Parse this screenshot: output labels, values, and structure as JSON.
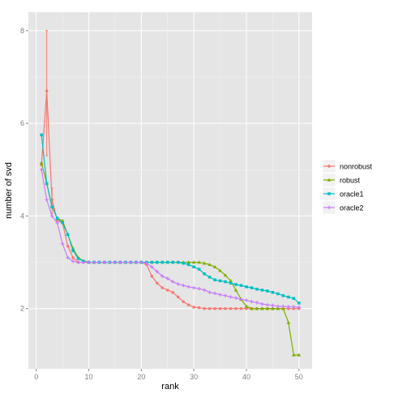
{
  "chart_data": {
    "type": "line",
    "title": "",
    "xlabel": "rank",
    "ylabel": "number of svd",
    "xlim": [
      -1.5,
      52.5
    ],
    "ylim": [
      0.7,
      8.4
    ],
    "xticks": [
      0,
      10,
      20,
      30,
      40,
      50
    ],
    "yticks": [
      2,
      4,
      6,
      8
    ],
    "grid": true,
    "legend_position": "right",
    "series": [
      {
        "name": "nonrobust",
        "color": "#F8766D",
        "marker": "circle",
        "x": [
          1,
          2,
          3,
          4,
          5,
          6,
          7,
          8,
          9,
          10,
          11,
          12,
          13,
          14,
          15,
          16,
          17,
          18,
          19,
          20,
          21,
          22,
          23,
          24,
          25,
          26,
          27,
          28,
          29,
          30,
          31,
          32,
          33,
          34,
          35,
          36,
          37,
          38,
          39,
          40,
          41,
          42,
          43,
          44,
          45,
          46,
          47,
          48,
          49,
          50
        ],
        "values": [
          5.1,
          6.7,
          4.35,
          3.9,
          3.85,
          3.35,
          3.1,
          3.0,
          3.0,
          3.0,
          3.0,
          3.0,
          3.0,
          3.0,
          3.0,
          3.0,
          3.0,
          3.0,
          3.0,
          3.0,
          2.95,
          2.7,
          2.55,
          2.45,
          2.4,
          2.35,
          2.25,
          2.15,
          2.08,
          2.03,
          2.02,
          2.0,
          2.0,
          2.0,
          2.0,
          2.0,
          2.0,
          2.0,
          2.0,
          2.0,
          2.0,
          2.0,
          2.0,
          2.0,
          2.0,
          2.0,
          2.0,
          2.0,
          2.0,
          2.0
        ],
        "error_bars": [
          {
            "x": 2,
            "low": 5.3,
            "high": 8.0
          },
          {
            "x": 3,
            "low": 4.05,
            "high": 4.6
          }
        ]
      },
      {
        "name": "robust",
        "color": "#7CAE00",
        "marker": "triangle",
        "x": [
          1,
          2,
          3,
          4,
          5,
          6,
          7,
          8,
          9,
          10,
          11,
          12,
          13,
          14,
          15,
          16,
          17,
          18,
          19,
          20,
          21,
          22,
          23,
          24,
          25,
          26,
          27,
          28,
          29,
          30,
          31,
          32,
          33,
          34,
          35,
          36,
          37,
          38,
          39,
          40,
          41,
          42,
          43,
          44,
          45,
          46,
          47,
          48,
          49,
          50
        ],
        "values": [
          5.15,
          4.7,
          4.2,
          3.95,
          3.9,
          3.6,
          3.3,
          3.1,
          3.03,
          3.0,
          3.0,
          3.0,
          3.0,
          3.0,
          3.0,
          3.0,
          3.0,
          3.0,
          3.0,
          3.0,
          3.0,
          3.0,
          3.0,
          3.0,
          3.0,
          3.0,
          3.0,
          3.0,
          3.0,
          3.0,
          3.0,
          2.98,
          2.95,
          2.9,
          2.82,
          2.72,
          2.6,
          2.4,
          2.2,
          2.05,
          2.0,
          2.0,
          2.0,
          2.0,
          2.0,
          2.0,
          2.0,
          1.7,
          1.0,
          1.0
        ]
      },
      {
        "name": "oracle1",
        "color": "#00BFC4",
        "marker": "square",
        "x": [
          1,
          2,
          3,
          4,
          5,
          6,
          7,
          8,
          9,
          10,
          11,
          12,
          13,
          14,
          15,
          16,
          17,
          18,
          19,
          20,
          21,
          22,
          23,
          24,
          25,
          26,
          27,
          28,
          29,
          30,
          31,
          32,
          33,
          34,
          35,
          36,
          37,
          38,
          39,
          40,
          41,
          42,
          43,
          44,
          45,
          46,
          47,
          48,
          49,
          50
        ],
        "values": [
          5.75,
          4.7,
          4.2,
          3.95,
          3.85,
          3.6,
          3.25,
          3.08,
          3.02,
          3.0,
          3.0,
          3.0,
          3.0,
          3.0,
          3.0,
          3.0,
          3.0,
          3.0,
          3.0,
          3.0,
          3.0,
          3.0,
          3.0,
          3.0,
          3.0,
          3.0,
          3.0,
          2.98,
          2.95,
          2.9,
          2.85,
          2.75,
          2.68,
          2.62,
          2.6,
          2.58,
          2.55,
          2.52,
          2.5,
          2.47,
          2.45,
          2.42,
          2.4,
          2.38,
          2.35,
          2.32,
          2.28,
          2.25,
          2.22,
          2.12
        ]
      },
      {
        "name": "oracle2",
        "color": "#C77CFF",
        "marker": "plus",
        "x": [
          1,
          2,
          3,
          4,
          5,
          6,
          7,
          8,
          9,
          10,
          11,
          12,
          13,
          14,
          15,
          16,
          17,
          18,
          19,
          20,
          21,
          22,
          23,
          24,
          25,
          26,
          27,
          28,
          29,
          30,
          31,
          32,
          33,
          34,
          35,
          36,
          37,
          38,
          39,
          40,
          41,
          42,
          43,
          44,
          45,
          46,
          47,
          48,
          49,
          50
        ],
        "values": [
          5.0,
          4.35,
          4.0,
          3.85,
          3.4,
          3.1,
          3.02,
          3.0,
          3.0,
          3.0,
          3.0,
          3.0,
          3.0,
          3.0,
          3.0,
          3.0,
          3.0,
          3.0,
          3.0,
          3.0,
          2.98,
          2.9,
          2.8,
          2.7,
          2.65,
          2.58,
          2.53,
          2.5,
          2.47,
          2.45,
          2.43,
          2.4,
          2.35,
          2.33,
          2.3,
          2.28,
          2.25,
          2.23,
          2.2,
          2.18,
          2.15,
          2.13,
          2.1,
          2.08,
          2.07,
          2.05,
          2.05,
          2.04,
          2.04,
          2.03
        ]
      }
    ]
  }
}
